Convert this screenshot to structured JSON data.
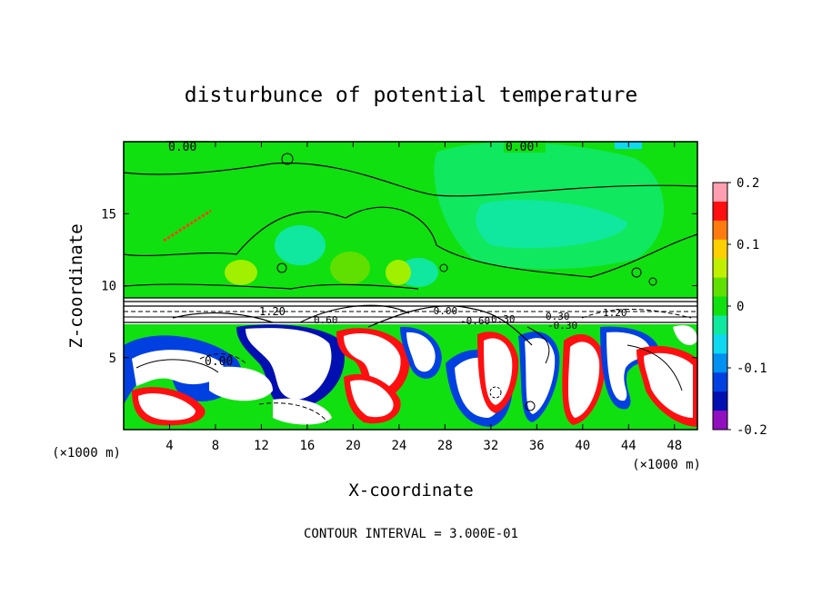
{
  "chart_data": {
    "type": "heatmap",
    "title": "disturbunce of potential temperature",
    "xlabel": "X-coordinate",
    "ylabel": "Z-coordinate",
    "x_unit_left": "(×1000 m)",
    "x_unit_right": "(×1000 m)",
    "xlim": [
      0,
      50
    ],
    "ylim": [
      0,
      20
    ],
    "x_ticks": [
      4,
      8,
      12,
      16,
      20,
      24,
      28,
      32,
      36,
      40,
      44,
      48
    ],
    "y_ticks": [
      5,
      10,
      15
    ],
    "colorbar": {
      "range": [
        -0.2,
        0.2
      ],
      "tick_labels": [
        "0.2",
        "0.1",
        "0",
        "-0.1",
        "-0.2"
      ],
      "tick_values": [
        0.2,
        0.1,
        0,
        -0.1,
        -0.2
      ],
      "colors": [
        "#ff9fb0",
        "#ff1010",
        "#ff7b10",
        "#ffd000",
        "#c0f000",
        "#60e000",
        "#10e010",
        "#10e8a0",
        "#10d8f0",
        "#0090f0",
        "#0040e0",
        "#0010b0",
        "#9010c0"
      ]
    },
    "contour_labels": [
      "0.00",
      "0.00",
      "1.20",
      "0.60",
      "-0.00",
      "0.00",
      "0.30",
      "0.30",
      "-0.60",
      "-0.30",
      "1.20"
    ],
    "footer": "CONTOUR INTERVAL = 3.000E-01"
  }
}
